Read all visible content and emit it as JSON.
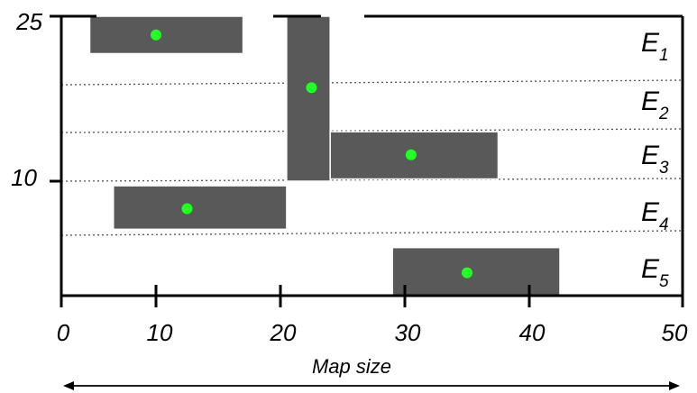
{
  "diagram": {
    "y_tick_labels": [
      "25",
      "10"
    ],
    "x_tick_labels": [
      "0",
      "10",
      "20",
      "30",
      "40",
      "50"
    ],
    "x_axis_title": "Map size",
    "colors": {
      "box": "#595959",
      "dot": "#22ff22",
      "frame": "#000000",
      "divider": "#555555"
    },
    "row_labels": [
      {
        "letter": "E",
        "sub": "1"
      },
      {
        "letter": "E",
        "sub": "2"
      },
      {
        "letter": "E",
        "sub": "3"
      },
      {
        "letter": "E",
        "sub": "4"
      },
      {
        "letter": "E",
        "sub": "5"
      }
    ],
    "boxes": [
      {
        "x_start": 3,
        "x_end": 17,
        "y_top": 25,
        "y_bottom": 21.6,
        "center_x": 10,
        "center_y": 23.3
      },
      {
        "x_start": 20.5,
        "x_end": 24,
        "y_top": 25,
        "y_bottom": 10,
        "center_x": 22.5,
        "center_y": 18.5
      },
      {
        "x_start": 24,
        "x_end": 37.5,
        "y_top": 14.5,
        "y_bottom": 10.2,
        "center_x": 30.5,
        "center_y": 12.4
      },
      {
        "x_start": 5.5,
        "x_end": 20.5,
        "y_top": 9.6,
        "y_bottom": 5.8,
        "center_x": 12.5,
        "center_y": 7.6
      },
      {
        "x_start": 29,
        "x_end": 42,
        "y_top": 4.2,
        "y_bottom": 0,
        "center_x": 35,
        "center_y": 2
      }
    ]
  }
}
